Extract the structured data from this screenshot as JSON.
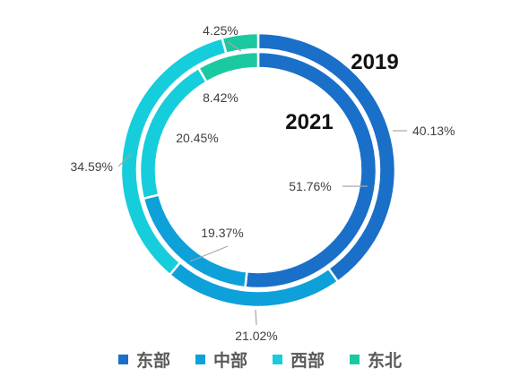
{
  "chart_data": {
    "type": "donut",
    "categories": [
      "东部",
      "中部",
      "西部",
      "东北"
    ],
    "colors": [
      "#1a6fc8",
      "#0ea0d9",
      "#16cddb",
      "#1bc9a0"
    ],
    "series": [
      {
        "name": "2019",
        "ring": "outer",
        "values": [
          40.13,
          21.02,
          34.59,
          4.25
        ],
        "labels": [
          "40.13%",
          "21.02%",
          "34.59%",
          "4.25%"
        ]
      },
      {
        "name": "2021",
        "ring": "inner",
        "values": [
          51.76,
          19.37,
          20.45,
          8.42
        ],
        "labels": [
          "51.76%",
          "19.37%",
          "20.45%",
          "8.42%"
        ]
      }
    ],
    "legend_position": "bottom"
  }
}
